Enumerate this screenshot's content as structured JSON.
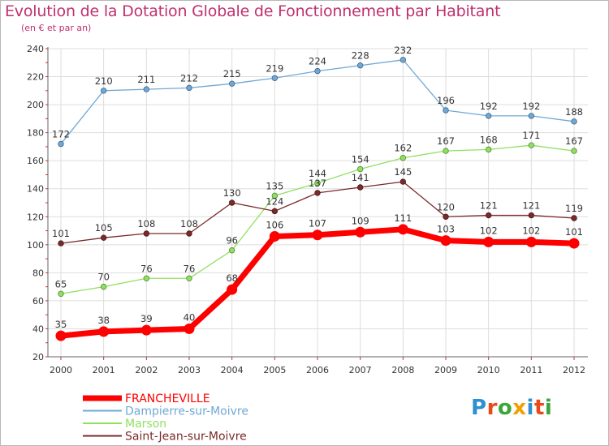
{
  "title": "Evolution de la Dotation Globale de Fonctionnement par Habitant",
  "subtitle": "(en € et par an)",
  "logo": {
    "text": "Proxiti",
    "letter_colors": [
      "#2f8fd0",
      "#e84a1a",
      "#3aa63a",
      "#f0a000",
      "#2f8fd0",
      "#e84a1a",
      "#3aa63a"
    ]
  },
  "chart_data": {
    "type": "line",
    "title": "Evolution de la Dotation Globale de Fonctionnement par Habitant",
    "subtitle": "(en € et par an)",
    "xlabel": "",
    "ylabel": "",
    "ylim": [
      20,
      240
    ],
    "yticks": [
      20,
      40,
      60,
      80,
      100,
      120,
      140,
      160,
      180,
      200,
      220,
      240
    ],
    "categories": [
      "2000",
      "2001",
      "2002",
      "2003",
      "2004",
      "2005",
      "2006",
      "2007",
      "2008",
      "2009",
      "2010",
      "2011",
      "2012"
    ],
    "grid": true,
    "legend_position": "bottom-left",
    "series": [
      {
        "name": "FRANCHEVILLE",
        "color": "#ff0000",
        "emphasis": true,
        "values": [
          35,
          38,
          39,
          40,
          68,
          106,
          107,
          109,
          111,
          103,
          102,
          102,
          101
        ]
      },
      {
        "name": "Dampierre-sur-Moivre",
        "color": "#6fa8d6",
        "emphasis": false,
        "values": [
          172,
          210,
          211,
          212,
          215,
          219,
          224,
          228,
          232,
          196,
          192,
          192,
          188
        ]
      },
      {
        "name": "Marson",
        "color": "#90e060",
        "emphasis": false,
        "values": [
          65,
          70,
          76,
          76,
          96,
          135,
          144,
          154,
          162,
          167,
          168,
          171,
          167
        ]
      },
      {
        "name": "Saint-Jean-sur-Moivre",
        "color": "#7a2a2a",
        "emphasis": false,
        "values": [
          101,
          105,
          108,
          108,
          130,
          124,
          137,
          141,
          145,
          120,
          121,
          121,
          119
        ]
      }
    ]
  }
}
